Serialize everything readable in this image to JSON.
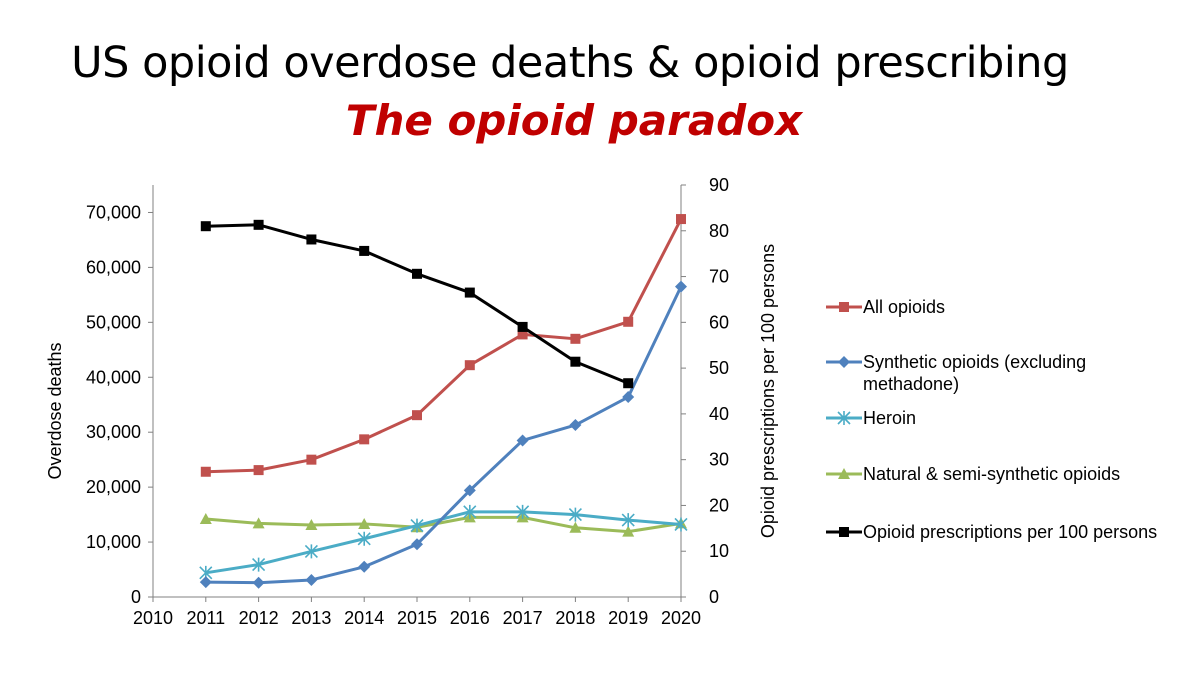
{
  "slide": {
    "title": "US opioid overdose deaths & opioid prescribing",
    "subtitle": "The opioid paradox",
    "subtitle_color": "#c00000"
  },
  "chart_data": {
    "type": "line",
    "x": [
      2011,
      2012,
      2013,
      2014,
      2015,
      2016,
      2017,
      2018,
      2019,
      2020
    ],
    "xlim": [
      2010,
      2020
    ],
    "x_ticks": [
      "2010",
      "2011",
      "2012",
      "2013",
      "2014",
      "2015",
      "2016",
      "2017",
      "2018",
      "2019",
      "2020"
    ],
    "ylabel": "Overdose deaths",
    "ylim": [
      0,
      75000
    ],
    "y_ticks": [
      "0",
      "10,000",
      "20,000",
      "30,000",
      "40,000",
      "50,000",
      "60,000",
      "70,000"
    ],
    "y_tick_values": [
      0,
      10000,
      20000,
      30000,
      40000,
      50000,
      60000,
      70000
    ],
    "y2label": "Opioid prescriptions per 100 persons",
    "y2lim": [
      0,
      90
    ],
    "y2_ticks": [
      "0",
      "10",
      "20",
      "30",
      "40",
      "50",
      "60",
      "70",
      "80",
      "90"
    ],
    "y2_tick_values": [
      0,
      10,
      20,
      30,
      40,
      50,
      60,
      70,
      80,
      90
    ],
    "grid": false,
    "legend_position": "right",
    "series": [
      {
        "name": "All opioids",
        "axis": "left",
        "color": "#c0504d",
        "marker": "square",
        "values": [
          22800,
          23100,
          25000,
          28700,
          33100,
          42200,
          47800,
          47000,
          50100,
          68800
        ]
      },
      {
        "name": "Synthetic opioids (excluding methadone)",
        "axis": "left",
        "color": "#4f81bd",
        "marker": "diamond",
        "values": [
          2700,
          2600,
          3100,
          5500,
          9600,
          19400,
          28500,
          31300,
          36400,
          56500
        ]
      },
      {
        "name": "Heroin",
        "axis": "left",
        "color": "#4bacc6",
        "marker": "asterisk",
        "values": [
          4400,
          5900,
          8300,
          10600,
          13000,
          15500,
          15500,
          15000,
          14000,
          13200
        ]
      },
      {
        "name": "Natural & semi-synthetic opioids",
        "axis": "left",
        "color": "#9bbb59",
        "marker": "triangle",
        "values": [
          14200,
          13400,
          13100,
          13300,
          12700,
          14500,
          14500,
          12600,
          11900,
          13400
        ]
      },
      {
        "name": "Opioid prescriptions per 100 persons",
        "axis": "right",
        "color": "#000000",
        "marker": "square",
        "x": [
          2011,
          2012,
          2013,
          2014,
          2015,
          2016,
          2017,
          2018,
          2019
        ],
        "values": [
          81.0,
          81.3,
          78.1,
          75.6,
          70.6,
          66.5,
          59.0,
          51.4,
          46.7
        ]
      }
    ],
    "legend": [
      "All opioids",
      "Synthetic opioids (excluding methadone)",
      "Heroin",
      "Natural & semi-synthetic opioids",
      "Opioid prescriptions per 100 persons"
    ]
  }
}
